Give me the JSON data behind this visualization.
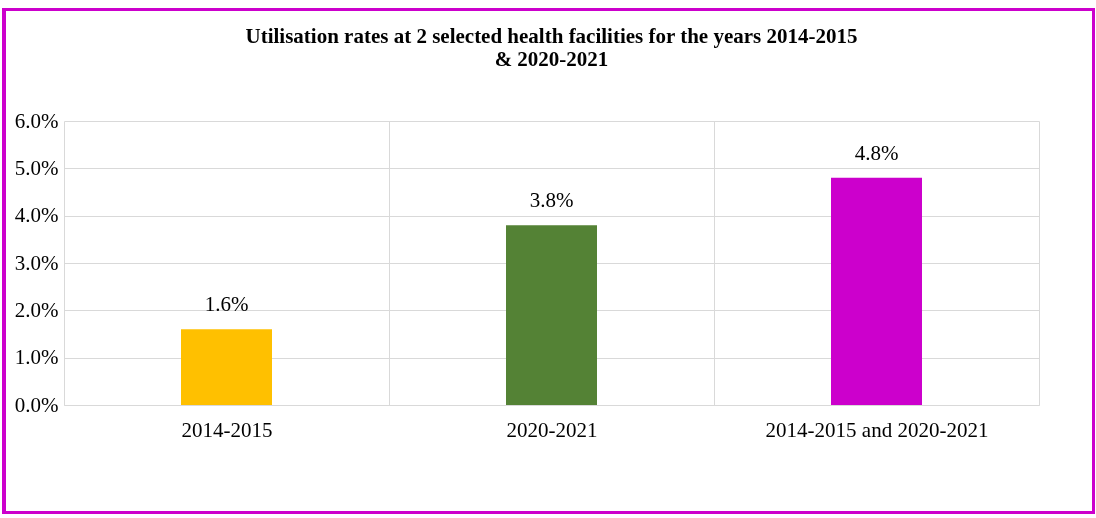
{
  "chart_data": {
    "type": "bar",
    "title": "Utilisation rates at 2 selected health facilities for the years 2014-2015\n& 2020-2021",
    "categories": [
      "2014-2015",
      "2020-2021",
      "2014-2015 and 2020-2021"
    ],
    "values": [
      1.6,
      3.8,
      4.8
    ],
    "colors": [
      "#ffc000",
      "#548235",
      "#cc00cc"
    ],
    "value_labels": [
      "1.6%",
      "3.8%",
      "4.8%"
    ],
    "ylim": [
      0,
      6
    ],
    "yticks": [
      {
        "value": 0,
        "label": "0.0%"
      },
      {
        "value": 1,
        "label": "1.0%"
      },
      {
        "value": 2,
        "label": "2.0%"
      },
      {
        "value": 3,
        "label": "3.0%"
      },
      {
        "value": 4,
        "label": "4.0%"
      },
      {
        "value": 5,
        "label": "5.0%"
      },
      {
        "value": 6,
        "label": "6.0%"
      }
    ],
    "grid": true
  }
}
